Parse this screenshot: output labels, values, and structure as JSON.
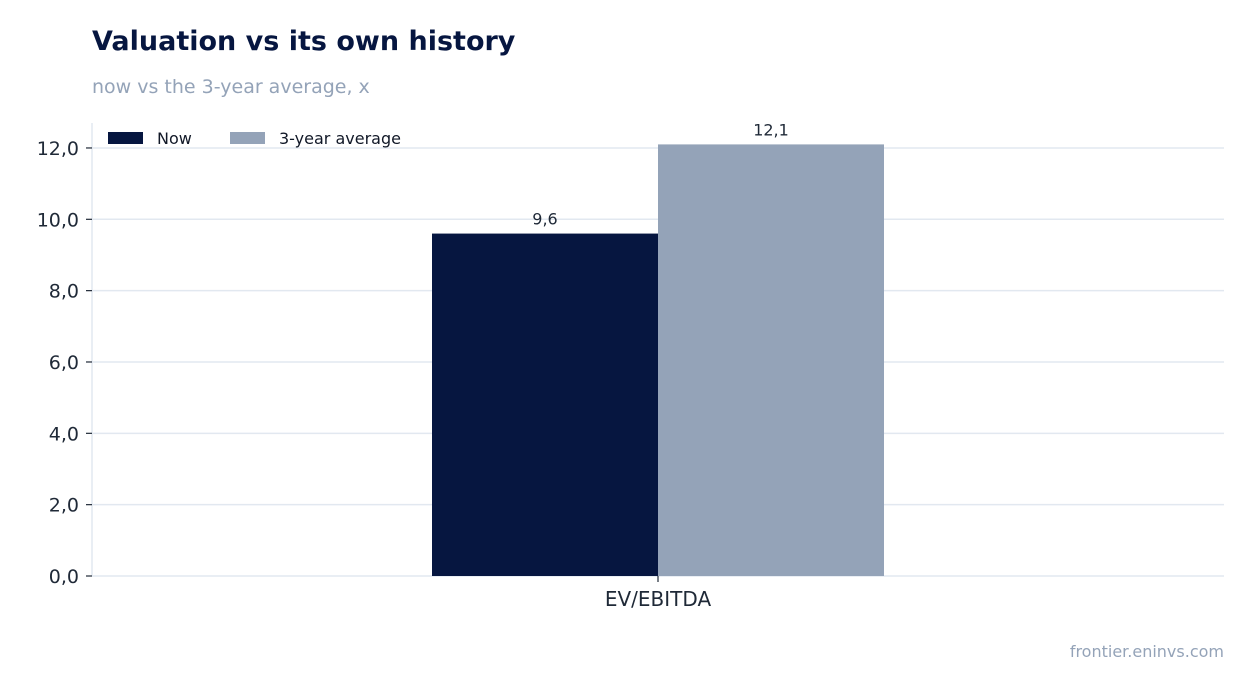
{
  "header": {
    "title": "Valuation vs its own history",
    "subtitle": "now vs the 3-year average, x"
  },
  "footer": {
    "source": "frontier.eninvs.com"
  },
  "colors": {
    "now": "#061640",
    "average": "#94a3b8",
    "grid": "#e2e8f0"
  },
  "chart_data": {
    "type": "bar",
    "categories": [
      "EV/EBITDA"
    ],
    "series": [
      {
        "name": "Now",
        "values": [
          9.6
        ],
        "labels": [
          "9,6"
        ]
      },
      {
        "name": "3-year average",
        "values": [
          12.1
        ],
        "labels": [
          "12,1"
        ]
      }
    ],
    "title": "Valuation vs its own history",
    "subtitle": "now vs the 3-year average, x",
    "xlabel": "",
    "ylabel": "",
    "ylim": [
      0,
      12.7
    ],
    "yticks": [
      0,
      2,
      4,
      6,
      8,
      10,
      12
    ],
    "ytick_labels": [
      "0,0",
      "2,0",
      "4,0",
      "6,0",
      "8,0",
      "10,0",
      "12,0"
    ],
    "grid": true,
    "legend_position": "top-left"
  }
}
